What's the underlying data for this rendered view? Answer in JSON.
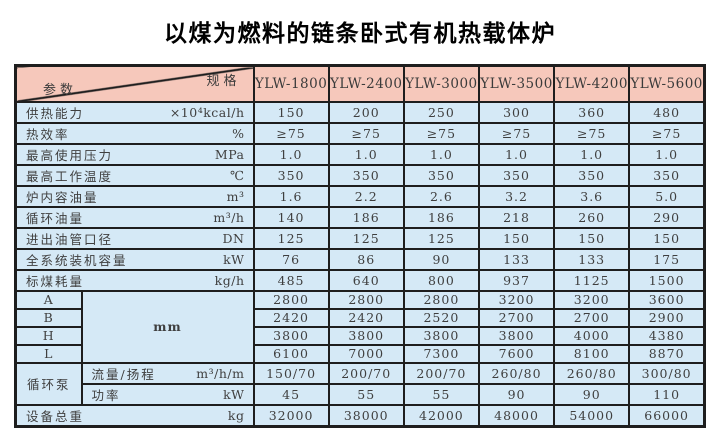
{
  "title": "以煤为燃料的链条卧式有机热载体炉",
  "table": {
    "corner": {
      "top_right": "规格",
      "bottom_left": "参数"
    },
    "columns": [
      "YLW-1800",
      "YLW-2400",
      "YLW-3000",
      "YLW-3500",
      "YLW-4200",
      "YLW-5600"
    ],
    "spec_rows": [
      {
        "label": "供热能力",
        "unit": "×10⁴kcal/h",
        "values": [
          "150",
          "200",
          "250",
          "300",
          "360",
          "480"
        ]
      },
      {
        "label": "热效率",
        "unit": "%",
        "values": [
          "≥75",
          "≥75",
          "≥75",
          "≥75",
          "≥75",
          "≥75"
        ]
      },
      {
        "label": "最高使用压力",
        "unit": "MPa",
        "values": [
          "1.0",
          "1.0",
          "1.0",
          "1.0",
          "1.0",
          "1.0"
        ]
      },
      {
        "label": "最高工作温度",
        "unit": "℃",
        "values": [
          "350",
          "350",
          "350",
          "350",
          "350",
          "350"
        ]
      },
      {
        "label": "炉内容油量",
        "unit": "m³",
        "values": [
          "1.6",
          "2.2",
          "2.6",
          "3.2",
          "3.6",
          "5.0"
        ]
      },
      {
        "label": "循环油量",
        "unit": "m³/h",
        "values": [
          "140",
          "186",
          "186",
          "218",
          "260",
          "290"
        ]
      },
      {
        "label": "进出油管口径",
        "unit": "DN",
        "values": [
          "125",
          "125",
          "125",
          "150",
          "150",
          "150"
        ]
      },
      {
        "label": "全系统装机容量",
        "unit": "kW",
        "values": [
          "76",
          "86",
          "90",
          "133",
          "133",
          "175"
        ]
      },
      {
        "label": "标煤耗量",
        "unit": "kg/h",
        "values": [
          "485",
          "640",
          "800",
          "937",
          "1125",
          "1500"
        ]
      }
    ],
    "dimension_group": {
      "unit": "mm",
      "rows": [
        {
          "label": "A",
          "values": [
            "2800",
            "2800",
            "2800",
            "3200",
            "3200",
            "3600"
          ]
        },
        {
          "label": "B",
          "values": [
            "2420",
            "2420",
            "2520",
            "2700",
            "2700",
            "2900"
          ]
        },
        {
          "label": "H",
          "values": [
            "3800",
            "3800",
            "3800",
            "3800",
            "4000",
            "4380"
          ]
        },
        {
          "label": "L",
          "values": [
            "6100",
            "7000",
            "7300",
            "7600",
            "8100",
            "8870"
          ]
        }
      ]
    },
    "pump_group": {
      "label": "循环泵",
      "rows": [
        {
          "label": "流量/扬程",
          "unit": "m³/h/m",
          "values": [
            "150/70",
            "200/70",
            "200/70",
            "260/80",
            "260/80",
            "300/80"
          ]
        },
        {
          "label": "功率",
          "unit": "kW",
          "values": [
            "45",
            "55",
            "55",
            "90",
            "90",
            "110"
          ]
        }
      ]
    },
    "total_row": {
      "label": "设备总重",
      "unit": "kg",
      "values": [
        "32000",
        "38000",
        "42000",
        "48000",
        "54000",
        "66000"
      ]
    }
  },
  "colors": {
    "header_bg": "#f6c8bb",
    "body_bg": "#d5e9f6",
    "border": "#1e1e1e"
  }
}
